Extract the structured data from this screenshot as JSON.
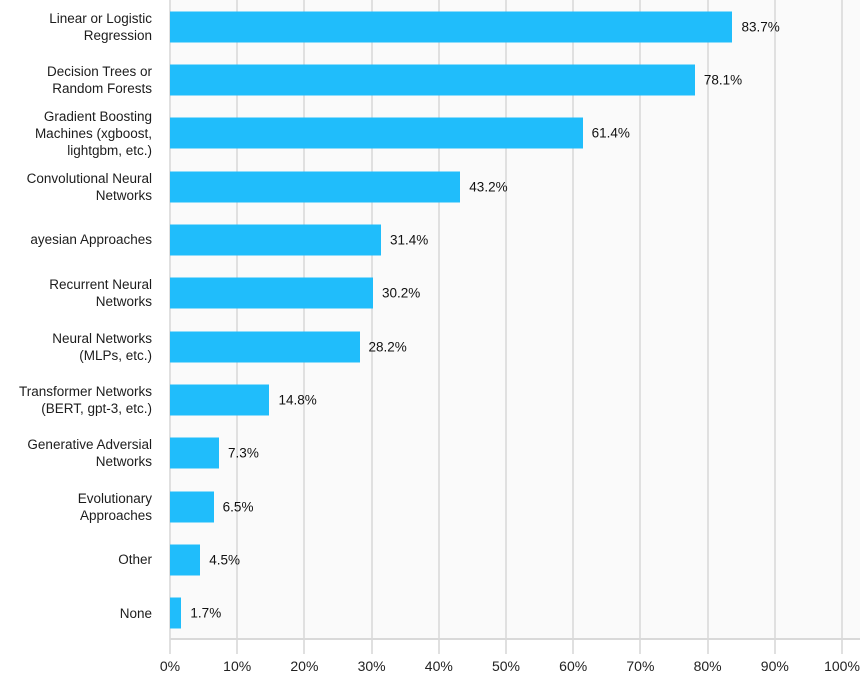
{
  "chart_data": {
    "type": "bar",
    "orientation": "horizontal",
    "title": "",
    "xlabel": "",
    "ylabel": "",
    "categories": [
      "Linear or Logistic\nRegression",
      "Decision Trees or\nRandom Forests",
      "Gradient Boosting\nMachines (xgboost,\nlightgbm, etc.)",
      "Convolutional Neural\nNetworks",
      "ayesian Approaches",
      "Recurrent Neural\nNetworks",
      "Neural Networks\n(MLPs, etc.)",
      "Transformer Networks\n(BERT, gpt-3, etc.)",
      "Generative Adversial\nNetworks",
      "Evolutionary\nApproaches",
      "Other",
      "None"
    ],
    "values": [
      83.7,
      78.1,
      61.4,
      43.2,
      31.4,
      30.2,
      28.2,
      14.8,
      7.3,
      6.5,
      4.5,
      1.7
    ],
    "value_labels": [
      "83.7%",
      "78.1%",
      "61.4%",
      "43.2%",
      "31.4%",
      "30.2%",
      "28.2%",
      "14.8%",
      "7.3%",
      "6.5%",
      "4.5%",
      "1.7%"
    ],
    "x_ticks": [
      "0%",
      "10%",
      "20%",
      "30%",
      "40%",
      "50%",
      "60%",
      "70%",
      "80%",
      "90%",
      "100%"
    ],
    "xlim": [
      0,
      100
    ],
    "grid": "vertical",
    "legend": "none",
    "colors": {
      "bar": "#20BDFB",
      "plot_background": "#FAFAFA",
      "gridline": "#E0E0E0",
      "axis_line": "#D9D9D9",
      "label_text": "#1C1C1C",
      "value_text": "#111111"
    }
  }
}
